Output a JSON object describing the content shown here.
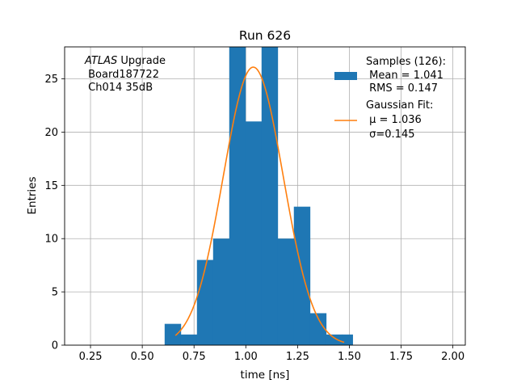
{
  "chart_data": {
    "type": "bar",
    "title": "Run 626",
    "xlabel": "time [ns]",
    "ylabel": "Entries",
    "xlim": [
      0.125,
      2.06
    ],
    "ylim": [
      0,
      28
    ],
    "x_ticks": [
      "0.25",
      "0.50",
      "0.75",
      "1.00",
      "1.25",
      "1.50",
      "1.75",
      "2.00"
    ],
    "x_tick_values": [
      0.25,
      0.5,
      0.75,
      1.0,
      1.25,
      1.5,
      1.75,
      2.0
    ],
    "y_ticks": [
      "0",
      "5",
      "10",
      "15",
      "20",
      "25"
    ],
    "y_tick_values": [
      0,
      5,
      10,
      15,
      20,
      25
    ],
    "grid": true,
    "bin_edges": [
      0.608,
      0.686,
      0.764,
      0.842,
      0.92,
      0.998,
      1.076,
      1.154,
      1.232,
      1.31,
      1.388,
      1.466
    ],
    "histogram": [
      2,
      1,
      8,
      10,
      28,
      21,
      28,
      10,
      13,
      3,
      1,
      1
    ],
    "bin_edges_full": [
      0.608,
      0.686,
      0.764,
      0.842,
      0.92,
      0.998,
      1.076,
      1.154,
      1.232,
      1.31,
      1.388,
      1.466,
      1.516
    ],
    "gaussian_fit": {
      "mu": 1.036,
      "sigma": 0.145,
      "amplitude": 26.1,
      "x_range": [
        0.66,
        1.475
      ]
    },
    "series": [
      {
        "name": "Samples (126):",
        "type": "histogram",
        "color": "#1f77b4"
      },
      {
        "name": "Gaussian Fit:",
        "type": "line",
        "color": "#ff7f0e"
      }
    ],
    "legend_position": "top-right"
  },
  "legend": {
    "samples_title": "Samples (126):",
    "samples_mean": " Mean = 1.041",
    "samples_rms": " RMS = 0.147",
    "fit_title": "Gaussian Fit:",
    "fit_mu": " μ = 1.036",
    "fit_sigma": " σ=0.145"
  },
  "info": {
    "atlas": "ATLAS",
    "upgrade": " Upgrade",
    "board": " Board187722",
    "channel": " Ch014 35dB"
  }
}
